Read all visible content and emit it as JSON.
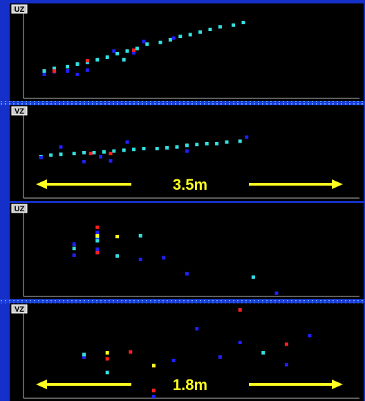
{
  "chart_data": [
    {
      "type": "scatter",
      "title": "UZ",
      "xlim": [
        0,
        100
      ],
      "ylim": [
        0,
        100
      ],
      "series": [
        {
          "color": "#33e0e0",
          "x": [
            5,
            8,
            12,
            15,
            18,
            21,
            24,
            27,
            30,
            33,
            36,
            40,
            43,
            46,
            49,
            52,
            55,
            58,
            62,
            65,
            29
          ],
          "values": [
            30,
            33,
            35,
            38,
            40,
            43,
            46,
            50,
            53,
            56,
            61,
            63,
            66,
            70,
            72,
            75,
            78,
            81,
            83,
            86,
            43
          ]
        },
        {
          "color": "#2020ff",
          "x": [
            5,
            8,
            12,
            15,
            18,
            32,
            35,
            44,
            26
          ],
          "values": [
            26,
            29,
            30,
            26,
            31,
            51,
            64,
            68,
            53
          ]
        },
        {
          "color": "#ff2020",
          "x": [
            18,
            8,
            32
          ],
          "values": [
            42,
            30,
            54
          ]
        }
      ]
    },
    {
      "type": "scatter",
      "title": "VZ",
      "annotation": "3.5m",
      "xlim": [
        0,
        100
      ],
      "ylim": [
        0,
        100
      ],
      "series": [
        {
          "color": "#33e0e0",
          "x": [
            4,
            7,
            10,
            14,
            17,
            20,
            23,
            26,
            29,
            32,
            35,
            39,
            42,
            45,
            48,
            51,
            54,
            57,
            60,
            64
          ],
          "values": [
            48,
            50,
            51,
            52,
            53,
            53,
            54,
            55,
            56,
            57,
            58,
            58,
            59,
            60,
            62,
            63,
            64,
            64,
            66,
            67
          ]
        },
        {
          "color": "#2020ff",
          "x": [
            10,
            17,
            22,
            25,
            30,
            48,
            66,
            4
          ],
          "values": [
            60,
            42,
            48,
            43,
            66,
            55,
            72,
            47
          ]
        },
        {
          "color": "#ff2020",
          "x": [
            19,
            25
          ],
          "values": [
            52,
            52
          ]
        }
      ]
    },
    {
      "type": "scatter",
      "title": "UZ",
      "xlim": [
        0,
        100
      ],
      "ylim": [
        0,
        100
      ],
      "series": [
        {
          "color": "#2020ff",
          "x": [
            14,
            14,
            21,
            21,
            34,
            41,
            48,
            68,
            75,
            21
          ],
          "values": [
            61,
            48,
            67,
            55,
            43,
            45,
            26,
            22,
            3,
            75
          ]
        },
        {
          "color": "#33e0e0",
          "x": [
            14,
            21,
            27,
            34,
            68,
            21
          ],
          "values": [
            56,
            70,
            47,
            71,
            22,
            65
          ]
        },
        {
          "color": "#ff2020",
          "x": [
            21,
            21
          ],
          "values": [
            81,
            51
          ]
        },
        {
          "color": "#ffff20",
          "x": [
            27,
            21
          ],
          "values": [
            70,
            71
          ]
        }
      ]
    },
    {
      "type": "scatter",
      "title": "VZ",
      "annotation": "1.8m",
      "xlim": [
        0,
        100
      ],
      "ylim": [
        0,
        105
      ],
      "series": [
        {
          "color": "#2020ff",
          "x": [
            51,
            64,
            85,
            58,
            44,
            78,
            38,
            17
          ],
          "values": [
            81,
            65,
            73,
            48,
            44,
            39,
            2,
            48
          ]
        },
        {
          "color": "#33e0e0",
          "x": [
            17,
            24,
            71
          ],
          "values": [
            51,
            30,
            53
          ]
        },
        {
          "color": "#ff2020",
          "x": [
            64,
            78,
            31,
            24,
            38
          ],
          "values": [
            103,
            63,
            54,
            46,
            9
          ]
        },
        {
          "color": "#ffff20",
          "x": [
            24,
            38
          ],
          "values": [
            53,
            38
          ]
        }
      ]
    }
  ]
}
